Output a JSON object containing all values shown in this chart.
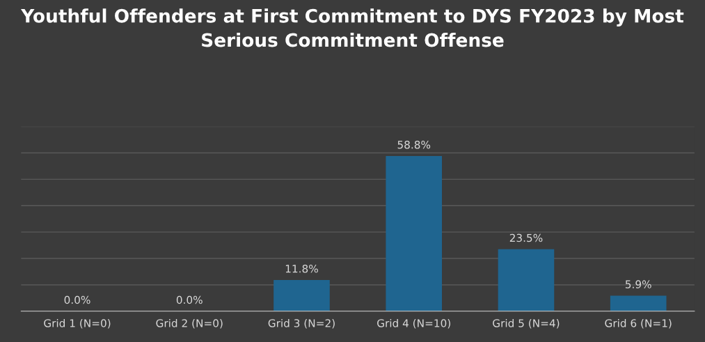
{
  "chart_data": {
    "type": "bar",
    "title": "Youthful Offenders at First Commitment to DYS FY2023 by Most Serious Commitment Offense",
    "categories": [
      "Grid 1 (N=0)",
      "Grid 2 (N=0)",
      "Grid 3 (N=2)",
      "Grid 4 (N=10)",
      "Grid 5 (N=4)",
      "Grid 6 (N=1)"
    ],
    "values": [
      0.0,
      0.0,
      11.8,
      58.8,
      23.5,
      5.9
    ],
    "value_labels": [
      "0.0%",
      "0.0%",
      "11.8%",
      "58.8%",
      "23.5%",
      "5.9%"
    ],
    "color": "#1f6590",
    "ylim": [
      0,
      70
    ],
    "yticks": [
      {
        "value": 0,
        "label": null
      },
      {
        "value": 10,
        "label": null
      },
      {
        "value": 20,
        "label": null
      },
      {
        "value": 30,
        "label": null
      },
      {
        "value": 40,
        "label": null
      },
      {
        "value": 50,
        "label": null
      },
      {
        "value": 60,
        "label": null
      },
      {
        "value": 70,
        "label": null
      }
    ],
    "grid": "y",
    "tick_labels": "x",
    "legend": false
  }
}
